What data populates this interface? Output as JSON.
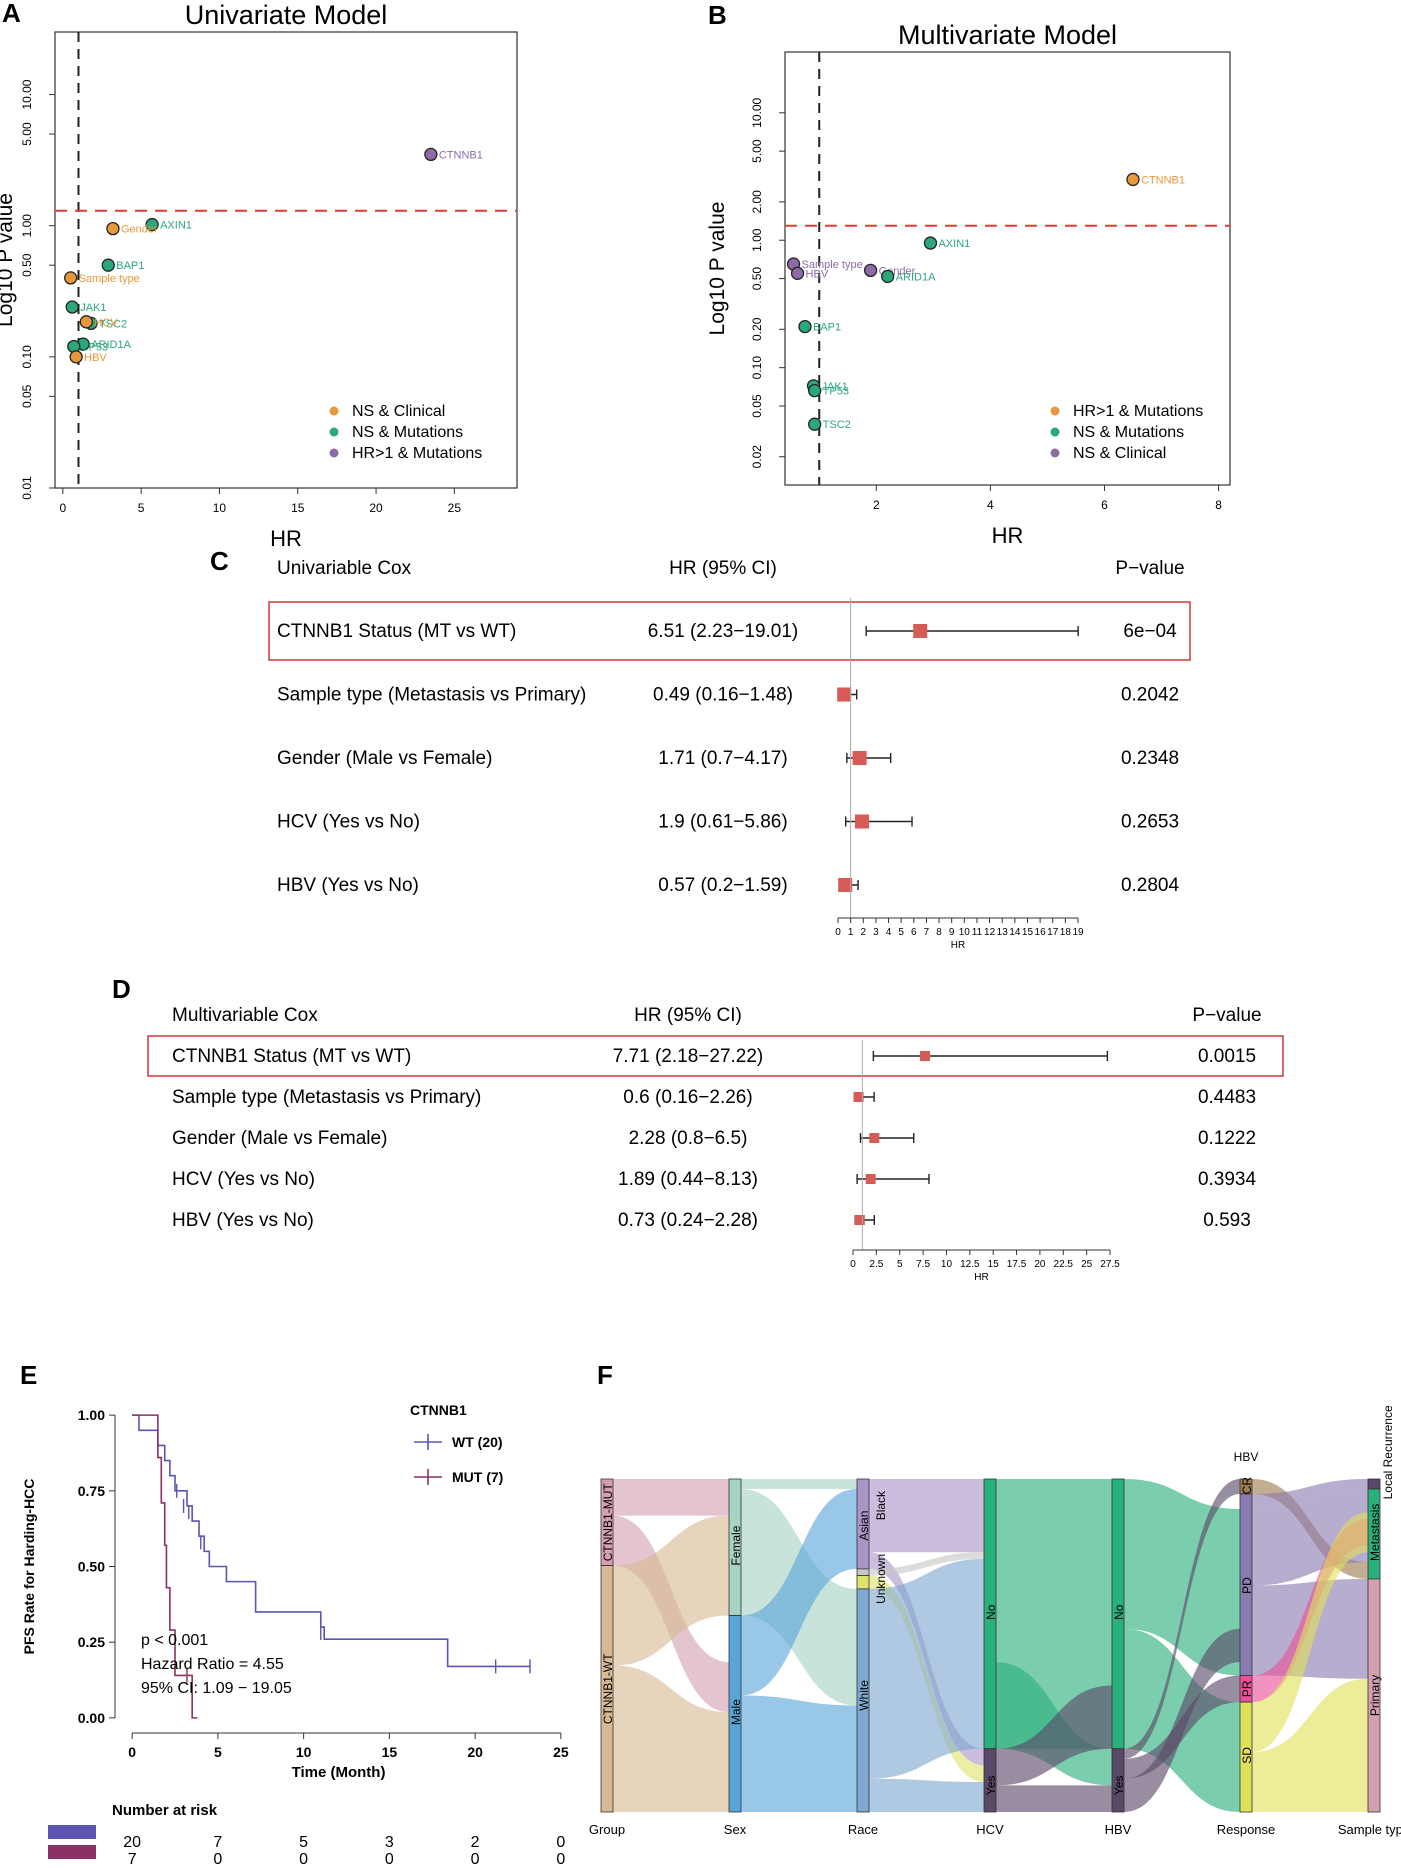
{
  "panels": {
    "A": "A",
    "B": "B",
    "C": "C",
    "D": "D",
    "E": "E",
    "F": "F"
  },
  "chart_data": [
    {
      "id": "A",
      "type": "scatter",
      "title": "Univariate Model",
      "xlabel": "HR",
      "ylabel": "Log10 P value",
      "xlim": [
        -0.5,
        29
      ],
      "ylim": [
        0.01,
        30
      ],
      "yscale": "log",
      "xticks": [
        0,
        5,
        10,
        15,
        20,
        25
      ],
      "yticks": [
        0.01,
        0.05,
        0.1,
        0.5,
        1.0,
        5.0,
        10.0
      ],
      "ytick_labels": [
        "0.01",
        "0.05",
        "0.10",
        "0.50",
        "1.00",
        "5.00",
        "10.00"
      ],
      "vline": 1,
      "hline": 1.3,
      "legend": [
        {
          "label": "NS & Clinical",
          "color": "#e8973a"
        },
        {
          "label": "NS & Mutations",
          "color": "#2aa87a"
        },
        {
          "label": "HR>1 & Mutations",
          "color": "#8c6ba8"
        }
      ],
      "points": [
        {
          "label": "CTNNB1",
          "x": 23.5,
          "y": 3.5,
          "group": 2
        },
        {
          "label": "AXIN1",
          "x": 5.7,
          "y": 1.02,
          "group": 1
        },
        {
          "label": "Gender",
          "x": 3.2,
          "y": 0.95,
          "group": 0
        },
        {
          "label": "BAP1",
          "x": 2.9,
          "y": 0.5,
          "group": 1
        },
        {
          "label": "Sample type",
          "x": 0.5,
          "y": 0.4,
          "group": 0
        },
        {
          "label": "JAK1",
          "x": 0.6,
          "y": 0.24,
          "group": 1
        },
        {
          "label": "TSC2",
          "x": 1.8,
          "y": 0.18,
          "group": 1
        },
        {
          "label": "HCV",
          "x": 1.5,
          "y": 0.185,
          "group": 0
        },
        {
          "label": "ARID1A",
          "x": 1.3,
          "y": 0.125,
          "group": 1
        },
        {
          "label": "TP53",
          "x": 0.7,
          "y": 0.12,
          "group": 1
        },
        {
          "label": "HBV",
          "x": 0.85,
          "y": 0.1,
          "group": 0
        }
      ]
    },
    {
      "id": "B",
      "type": "scatter",
      "title": "Multivariate Model",
      "xlabel": "HR",
      "ylabel": "Log10 P value",
      "xlim": [
        0.4,
        8.2
      ],
      "ylim": [
        0.012,
        30
      ],
      "yscale": "log",
      "xticks": [
        2,
        4,
        6,
        8
      ],
      "yticks": [
        0.02,
        0.05,
        0.1,
        0.2,
        0.5,
        1.0,
        2.0,
        5.0,
        10.0
      ],
      "ytick_labels": [
        "0.02",
        "0.05",
        "0.10",
        "0.20",
        "0.50",
        "1.00",
        "2.00",
        "5.00",
        "10.00"
      ],
      "vline": 1,
      "hline": 1.3,
      "legend": [
        {
          "label": "HR>1 & Mutations",
          "color": "#e8973a"
        },
        {
          "label": "NS & Mutations",
          "color": "#2aa87a"
        },
        {
          "label": "NS & Clinical",
          "color": "#8c6ba8"
        }
      ],
      "points": [
        {
          "label": "CTNNB1",
          "x": 6.5,
          "y": 3.0,
          "group": 0
        },
        {
          "label": "AXIN1",
          "x": 2.95,
          "y": 0.95,
          "group": 1
        },
        {
          "label": "Gender",
          "x": 1.9,
          "y": 0.58,
          "group": 2
        },
        {
          "label": "ARID1A",
          "x": 2.2,
          "y": 0.52,
          "group": 1
        },
        {
          "label": "Sample type",
          "x": 0.55,
          "y": 0.65,
          "group": 2
        },
        {
          "label": "HBV",
          "x": 0.62,
          "y": 0.55,
          "group": 2
        },
        {
          "label": "BAP1",
          "x": 0.75,
          "y": 0.21,
          "group": 1
        },
        {
          "label": "JAK1",
          "x": 0.9,
          "y": 0.072,
          "group": 1
        },
        {
          "label": "TP53",
          "x": 0.92,
          "y": 0.066,
          "group": 1
        },
        {
          "label": "TSC2",
          "x": 0.92,
          "y": 0.036,
          "group": 1
        }
      ]
    },
    {
      "id": "C",
      "type": "forest",
      "title": "Univariable Cox",
      "col_hr": "HR (95% CI)",
      "col_p": "P−value",
      "xlabel": "HR",
      "xlim": [
        0,
        19
      ],
      "xticks": [
        0,
        1,
        2,
        3,
        4,
        5,
        6,
        7,
        8,
        9,
        10,
        11,
        12,
        13,
        14,
        15,
        16,
        17,
        18,
        19
      ],
      "highlight": 0,
      "rows": [
        {
          "label": "CTNNB1 Status (MT vs WT)",
          "ci_text": "6.51 (2.23−19.01)",
          "hr": 6.51,
          "lo": 2.23,
          "hi": 19.01,
          "p": "6e−04"
        },
        {
          "label": "Sample type (Metastasis vs Primary)",
          "ci_text": "0.49 (0.16−1.48)",
          "hr": 0.49,
          "lo": 0.16,
          "hi": 1.48,
          "p": "0.2042"
        },
        {
          "label": "Gender (Male vs Female)",
          "ci_text": "1.71 (0.7−4.17)",
          "hr": 1.71,
          "lo": 0.7,
          "hi": 4.17,
          "p": "0.2348"
        },
        {
          "label": "HCV (Yes vs No)",
          "ci_text": "1.9 (0.61−5.86)",
          "hr": 1.9,
          "lo": 0.61,
          "hi": 5.86,
          "p": "0.2653"
        },
        {
          "label": "HBV (Yes vs No)",
          "ci_text": "0.57 (0.2−1.59)",
          "hr": 0.57,
          "lo": 0.2,
          "hi": 1.59,
          "p": "0.2804"
        }
      ]
    },
    {
      "id": "D",
      "type": "forest",
      "title": "Multivariable Cox",
      "col_hr": "HR (95% CI)",
      "col_p": "P−value",
      "xlabel": "HR",
      "xlim": [
        0,
        27.5
      ],
      "xticks": [
        0,
        2.5,
        5,
        7.5,
        10,
        12.5,
        15,
        17.5,
        20,
        22.5,
        25,
        27.5
      ],
      "highlight": 0,
      "rows": [
        {
          "label": "CTNNB1 Status (MT vs WT)",
          "ci_text": "7.71 (2.18−27.22)",
          "hr": 7.71,
          "lo": 2.18,
          "hi": 27.22,
          "p": "0.0015"
        },
        {
          "label": "Sample type (Metastasis vs Primary)",
          "ci_text": "0.6 (0.16−2.26)",
          "hr": 0.6,
          "lo": 0.16,
          "hi": 2.26,
          "p": "0.4483"
        },
        {
          "label": "Gender (Male vs Female)",
          "ci_text": "2.28 (0.8−6.5)",
          "hr": 2.28,
          "lo": 0.8,
          "hi": 6.5,
          "p": "0.1222"
        },
        {
          "label": "HCV (Yes vs No)",
          "ci_text": "1.89 (0.44−8.13)",
          "hr": 1.89,
          "lo": 0.44,
          "hi": 8.13,
          "p": "0.3934"
        },
        {
          "label": "HBV (Yes vs No)",
          "ci_text": "0.73 (0.24−2.28)",
          "hr": 0.73,
          "lo": 0.24,
          "hi": 2.28,
          "p": "0.593"
        }
      ]
    },
    {
      "id": "E",
      "type": "line",
      "subtype": "kaplan-meier",
      "xlabel": "Time (Month)",
      "ylabel": "PFS Rate for Harding-HCC",
      "xlim": [
        -1,
        26
      ],
      "ylim": [
        -0.05,
        1.05
      ],
      "xticks": [
        0,
        5,
        10,
        15,
        20,
        25
      ],
      "yticks": [
        0,
        0.25,
        0.5,
        0.75,
        1.0
      ],
      "ytick_labels": [
        "0.00",
        "0.25",
        "0.50",
        "0.75",
        "1.00"
      ],
      "legend_title": "CTNNB1",
      "annotations": [
        "p < 0.001",
        "Hazard Ratio = 4.55",
        "95% CI: 1.09 − 19.05"
      ],
      "series": [
        {
          "name": "WT (20)",
          "color": "#5a55b5",
          "steps": [
            [
              0,
              1.0
            ],
            [
              0.4,
              0.95
            ],
            [
              1.5,
              0.9
            ],
            [
              1.9,
              0.85
            ],
            [
              2.2,
              0.8
            ],
            [
              2.5,
              0.75
            ],
            [
              3.2,
              0.7
            ],
            [
              3.5,
              0.65
            ],
            [
              3.9,
              0.6
            ],
            [
              4.2,
              0.55
            ],
            [
              4.5,
              0.5
            ],
            [
              5.5,
              0.45
            ],
            [
              7.2,
              0.35
            ],
            [
              11.0,
              0.3
            ],
            [
              11.2,
              0.26
            ],
            [
              18.4,
              0.17
            ],
            [
              23.2,
              0.17
            ]
          ],
          "censor": [
            [
              2.6,
              0.75
            ],
            [
              3.0,
              0.7
            ],
            [
              3.3,
              0.68
            ],
            [
              4.0,
              0.58
            ],
            [
              11.0,
              0.28
            ],
            [
              21.2,
              0.17
            ],
            [
              23.2,
              0.17
            ]
          ]
        },
        {
          "name": "MUT (7)",
          "color": "#8a3266",
          "steps": [
            [
              0,
              1.0
            ],
            [
              1.5,
              0.86
            ],
            [
              1.7,
              0.71
            ],
            [
              1.9,
              0.57
            ],
            [
              2.0,
              0.43
            ],
            [
              2.2,
              0.29
            ],
            [
              2.5,
              0.14
            ],
            [
              3.5,
              0.0
            ],
            [
              3.8,
              0.0
            ]
          ],
          "censor": [
            [
              3.2,
              0.14
            ]
          ]
        }
      ],
      "risk_table": {
        "title": "Number at risk",
        "times": [
          0,
          5,
          10,
          15,
          20,
          25
        ],
        "rows": [
          {
            "color": "#5a55b5",
            "values": [
              "20",
              "7",
              "5",
              "3",
              "2",
              "0"
            ]
          },
          {
            "color": "#8a3266",
            "values": [
              "7",
              "0",
              "0",
              "0",
              "0",
              "0"
            ]
          }
        ]
      }
    },
    {
      "id": "F",
      "type": "sankey",
      "axes": [
        "Group",
        "Sex",
        "Race",
        "HCV",
        "HBV",
        "Response",
        "Sample type"
      ],
      "node_labels": {
        "group": [
          "CTNNB1-MUT",
          "CTNNB1-WT"
        ],
        "sex": [
          "Female",
          "Male"
        ],
        "race": [
          "Asian",
          "Unknown",
          "Black",
          "White"
        ],
        "hcv": [
          "No",
          "Yes"
        ],
        "hbv": [
          "No",
          "Yes"
        ],
        "response": [
          "CR",
          "PD",
          "PR",
          "SD"
        ],
        "sample": [
          "Local Recurrence",
          "Metastasis",
          "Primary"
        ]
      },
      "extra_label": "HBV",
      "colors": {
        "mut": "#d4a0b0",
        "wt": "#d9b994",
        "female": "#a7d3c4",
        "male": "#5aa5d8",
        "asian": "#a995c8",
        "unknown": "#c7c7c7",
        "black": "#dfe36a",
        "white": "#7fa8d2",
        "hcv_no": "#2ab07a",
        "hcv_yes": "#5a4868",
        "hbv_no": "#2ab07a",
        "hbv_yes": "#5a4868",
        "cr": "#a07d50",
        "pd": "#8a7bb0",
        "pr": "#e8509a",
        "sd": "#e0e05a",
        "local": "#5a4868",
        "meta": "#2ab07a",
        "primary": "#d4a0b0"
      }
    }
  ]
}
